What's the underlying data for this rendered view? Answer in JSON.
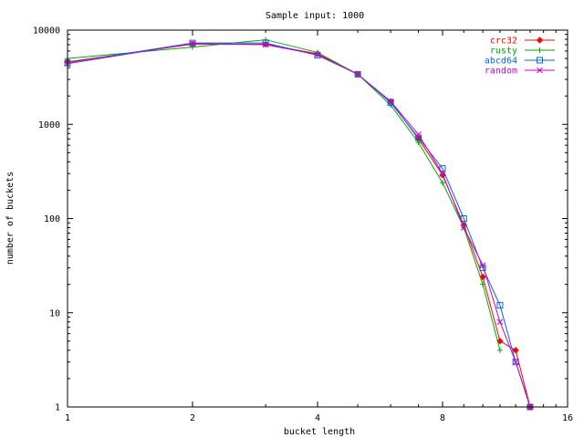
{
  "chart_data": {
    "type": "line",
    "title": "Sample input: 1000",
    "xlabel": "bucket length",
    "ylabel": "number of buckets",
    "x_scale": "log2",
    "y_scale": "log10",
    "xlim": [
      1,
      16
    ],
    "ylim": [
      1,
      10000
    ],
    "x_ticks": [
      {
        "value": 1,
        "label": "1"
      },
      {
        "value": 2,
        "label": "2"
      },
      {
        "value": 4,
        "label": "4"
      },
      {
        "value": 8,
        "label": "8"
      },
      {
        "value": 16,
        "label": "16"
      }
    ],
    "y_ticks": [
      {
        "value": 1,
        "label": "1"
      },
      {
        "value": 10,
        "label": "10"
      },
      {
        "value": 100,
        "label": "100"
      },
      {
        "value": 1000,
        "label": "1000"
      },
      {
        "value": 10000,
        "label": "10000"
      }
    ],
    "grid": false,
    "legend_position": "top-right",
    "series": [
      {
        "name": "crc32",
        "color": "#ff0000",
        "marker": "diamond",
        "points": [
          [
            1,
            4600
          ],
          [
            2,
            7100
          ],
          [
            3,
            7100
          ],
          [
            4,
            5600
          ],
          [
            5,
            3400
          ],
          [
            6,
            1750
          ],
          [
            7,
            700
          ],
          [
            8,
            290
          ],
          [
            9,
            85
          ],
          [
            10,
            24
          ],
          [
            11,
            5
          ],
          [
            12,
            4
          ],
          [
            13,
            1
          ]
        ]
      },
      {
        "name": "rusty",
        "color": "#00aa00",
        "marker": "plus",
        "points": [
          [
            1,
            5000
          ],
          [
            2,
            6600
          ],
          [
            3,
            7900
          ],
          [
            4,
            5800
          ],
          [
            5,
            3400
          ],
          [
            6,
            1600
          ],
          [
            7,
            640
          ],
          [
            8,
            240
          ],
          [
            9,
            80
          ],
          [
            10,
            20
          ],
          [
            11,
            4
          ]
        ]
      },
      {
        "name": "abcd64",
        "color": "#0066ee",
        "marker": "square",
        "points": [
          [
            1,
            4500
          ],
          [
            2,
            7300
          ],
          [
            3,
            7300
          ],
          [
            4,
            5400
          ],
          [
            5,
            3400
          ],
          [
            6,
            1700
          ],
          [
            7,
            720
          ],
          [
            8,
            340
          ],
          [
            9,
            100
          ],
          [
            10,
            30
          ],
          [
            11,
            12
          ],
          [
            12,
            3
          ],
          [
            13,
            1
          ]
        ]
      },
      {
        "name": "random",
        "color": "#cc00cc",
        "marker": "cross",
        "points": [
          [
            1,
            4400
          ],
          [
            2,
            7200
          ],
          [
            3,
            7000
          ],
          [
            4,
            5500
          ],
          [
            5,
            3400
          ],
          [
            6,
            1750
          ],
          [
            7,
            780
          ],
          [
            8,
            300
          ],
          [
            9,
            80
          ],
          [
            10,
            32
          ],
          [
            11,
            8
          ],
          [
            12,
            3
          ],
          [
            13,
            1
          ]
        ]
      }
    ]
  }
}
